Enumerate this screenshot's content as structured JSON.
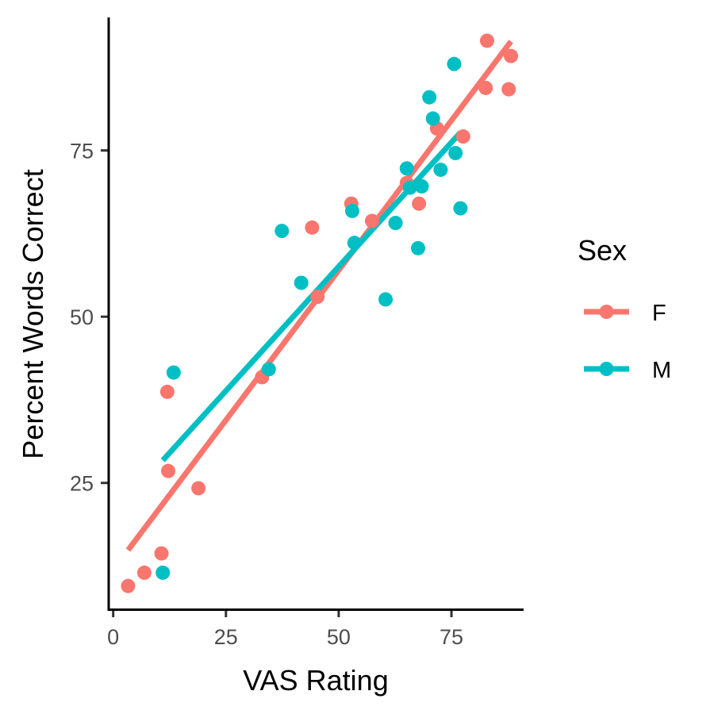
{
  "chart_data": {
    "type": "scatter",
    "xlabel": "VAS Rating",
    "ylabel": "Percent Words Correct",
    "xlim": [
      -1,
      91
    ],
    "ylim": [
      6,
      95
    ],
    "xticks": [
      0,
      25,
      50,
      75
    ],
    "yticks": [
      25,
      50,
      75
    ],
    "grid": false,
    "legend": {
      "title": "Sex",
      "position": "right"
    },
    "series": [
      {
        "name": "F",
        "color": "#F8766D",
        "points": [
          [
            3.3,
            9.5
          ],
          [
            6.9,
            11.5
          ],
          [
            10.7,
            14.4
          ],
          [
            12.0,
            38.7
          ],
          [
            12.2,
            26.8
          ],
          [
            18.9,
            24.2
          ],
          [
            33.0,
            40.9
          ],
          [
            44.1,
            63.4
          ],
          [
            45.3,
            53.0
          ],
          [
            52.8,
            67.0
          ],
          [
            57.4,
            64.4
          ],
          [
            65.1,
            70.1
          ],
          [
            67.8,
            67.0
          ],
          [
            71.8,
            78.3
          ],
          [
            77.6,
            77.1
          ],
          [
            82.6,
            84.4
          ],
          [
            82.9,
            91.5
          ],
          [
            87.7,
            84.2
          ],
          [
            88.2,
            89.2
          ]
        ],
        "fit": [
          [
            3.3,
            14.9
          ],
          [
            88.2,
            91.4
          ]
        ]
      },
      {
        "name": "M",
        "color": "#00BFC4",
        "points": [
          [
            11.0,
            11.5
          ],
          [
            13.4,
            41.6
          ],
          [
            34.5,
            42.1
          ],
          [
            37.4,
            62.9
          ],
          [
            41.7,
            55.1
          ],
          [
            53.0,
            65.9
          ],
          [
            53.5,
            61.1
          ],
          [
            60.4,
            52.6
          ],
          [
            62.6,
            64.1
          ],
          [
            65.1,
            72.3
          ],
          [
            65.8,
            69.4
          ],
          [
            67.6,
            60.3
          ],
          [
            68.4,
            69.6
          ],
          [
            70.1,
            83.0
          ],
          [
            70.9,
            79.8
          ],
          [
            72.6,
            72.1
          ],
          [
            75.6,
            88.0
          ],
          [
            75.9,
            74.6
          ],
          [
            77.0,
            66.3
          ]
        ],
        "fit": [
          [
            11.0,
            28.4
          ],
          [
            77.0,
            77.7
          ]
        ]
      }
    ]
  }
}
